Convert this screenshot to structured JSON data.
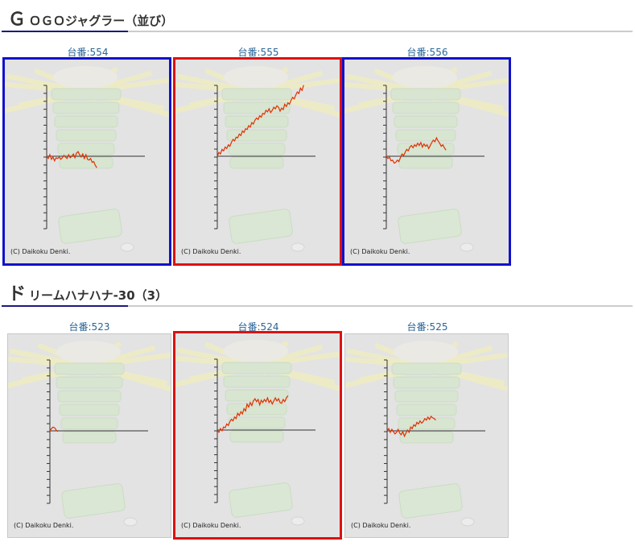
{
  "sections": [
    {
      "title_big": "Ｇ",
      "title_rest": "ＯＧＯジャグラー（並び）",
      "slots": [
        {
          "label": "台番:554",
          "highlight": "blue",
          "graph": [
            0,
            -3,
            2,
            -4,
            -1,
            -6,
            -2,
            -3,
            -1,
            -4,
            -2,
            1,
            -1,
            -3,
            2,
            -2,
            0,
            3,
            -2,
            4,
            6,
            2,
            -1,
            3,
            -3,
            2,
            -4,
            -5,
            -3,
            -8,
            -7,
            -12,
            -15
          ]
        },
        {
          "label": "台番:555",
          "highlight": "red",
          "graph": [
            0,
            5,
            3,
            9,
            7,
            12,
            10,
            15,
            13,
            18,
            22,
            20,
            25,
            24,
            29,
            27,
            33,
            31,
            36,
            35,
            40,
            38,
            44,
            42,
            47,
            50,
            48,
            53,
            51,
            56,
            55,
            60,
            58,
            62,
            57,
            60,
            64,
            62,
            66,
            64,
            59,
            63,
            61,
            68,
            65,
            70,
            68,
            73,
            77,
            75,
            80,
            84,
            82,
            89,
            86,
            93
          ]
        },
        {
          "label": "台番:556",
          "highlight": "blue",
          "graph": [
            0,
            -3,
            -1,
            -6,
            -5,
            -9,
            -8,
            -5,
            -7,
            -2,
            3,
            1,
            5,
            9,
            7,
            12,
            14,
            11,
            15,
            13,
            17,
            14,
            18,
            12,
            16,
            13,
            15,
            10,
            14,
            18,
            21,
            19,
            24,
            20,
            17,
            13,
            15,
            11,
            8
          ]
        }
      ]
    },
    {
      "title_big": "ド",
      "title_rest": "リームハナハナ-30（3）",
      "slots": [
        {
          "label": "台番:523",
          "highlight": "none",
          "graph": [
            0,
            3,
            5,
            4,
            1,
            -1
          ]
        },
        {
          "label": "台番:524",
          "highlight": "red",
          "graph": [
            0,
            -3,
            2,
            -1,
            4,
            3,
            8,
            6,
            11,
            14,
            12,
            17,
            15,
            22,
            19,
            24,
            21,
            28,
            25,
            34,
            30,
            36,
            32,
            38,
            41,
            37,
            40,
            33,
            39,
            36,
            40,
            37,
            42,
            36,
            39,
            34,
            38,
            42,
            38,
            41,
            36,
            35,
            40,
            37,
            42,
            45
          ]
        },
        {
          "label": "台番:525",
          "highlight": "none",
          "graph": [
            0,
            3,
            -2,
            2,
            -1,
            -4,
            -2,
            2,
            -3,
            -5,
            -1,
            -7,
            -3,
            1,
            -2,
            5,
            3,
            8,
            6,
            11,
            9,
            13,
            10,
            12,
            16,
            14,
            18,
            15,
            19,
            17,
            16,
            14
          ]
        }
      ]
    }
  ],
  "copyright_text": "(C) Daikoku Denki.",
  "colors": {
    "graph_line": "#e03000",
    "highlight_red": "#dd1111",
    "highlight_blue": "#1111cc",
    "plain_border": "#c8c8c8",
    "label_text": "#2a6496"
  }
}
